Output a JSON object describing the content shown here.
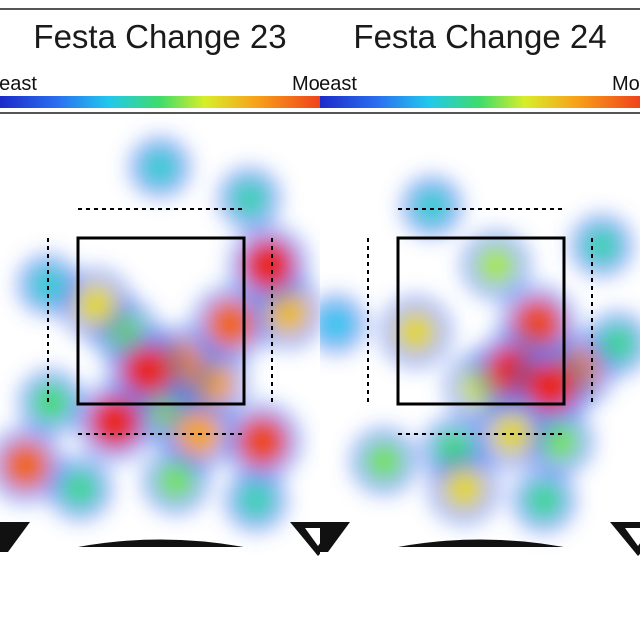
{
  "chart_data": [
    {
      "type": "heatmap",
      "title": "Festa Change 23",
      "legend": {
        "low_label": "Least",
        "high_label": "Most"
      },
      "grid": false,
      "strike_zone": true,
      "hotspots": [
        {
          "x": 0.08,
          "y": 0.86,
          "intensity": 0.9
        },
        {
          "x": 0.16,
          "y": 0.7,
          "intensity": 0.5
        },
        {
          "x": 0.3,
          "y": 0.45,
          "intensity": 0.7
        },
        {
          "x": 0.39,
          "y": 0.52,
          "intensity": 0.55
        },
        {
          "x": 0.46,
          "y": 0.62,
          "intensity": 1.0
        },
        {
          "x": 0.56,
          "y": 0.6,
          "intensity": 0.85
        },
        {
          "x": 0.66,
          "y": 0.65,
          "intensity": 0.8
        },
        {
          "x": 0.72,
          "y": 0.5,
          "intensity": 0.9
        },
        {
          "x": 0.84,
          "y": 0.35,
          "intensity": 1.0
        },
        {
          "x": 0.9,
          "y": 0.47,
          "intensity": 0.75
        },
        {
          "x": 0.36,
          "y": 0.75,
          "intensity": 1.0
        },
        {
          "x": 0.52,
          "y": 0.72,
          "intensity": 0.6
        },
        {
          "x": 0.62,
          "y": 0.78,
          "intensity": 0.8
        },
        {
          "x": 0.82,
          "y": 0.8,
          "intensity": 0.95
        },
        {
          "x": 0.5,
          "y": 0.1,
          "intensity": 0.35
        },
        {
          "x": 0.78,
          "y": 0.18,
          "intensity": 0.4
        },
        {
          "x": 0.15,
          "y": 0.4,
          "intensity": 0.35
        },
        {
          "x": 0.25,
          "y": 0.92,
          "intensity": 0.45
        },
        {
          "x": 0.55,
          "y": 0.9,
          "intensity": 0.55
        },
        {
          "x": 0.8,
          "y": 0.95,
          "intensity": 0.4
        }
      ]
    },
    {
      "type": "heatmap",
      "title": "Festa Change 24",
      "legend": {
        "low_label": "Least",
        "high_label": "Most"
      },
      "grid": false,
      "strike_zone": true,
      "hotspots": [
        {
          "x": 0.3,
          "y": 0.52,
          "intensity": 0.7
        },
        {
          "x": 0.55,
          "y": 0.35,
          "intensity": 0.6
        },
        {
          "x": 0.68,
          "y": 0.5,
          "intensity": 0.95
        },
        {
          "x": 0.6,
          "y": 0.62,
          "intensity": 1.0
        },
        {
          "x": 0.72,
          "y": 0.66,
          "intensity": 1.0
        },
        {
          "x": 0.8,
          "y": 0.62,
          "intensity": 0.85
        },
        {
          "x": 0.5,
          "y": 0.66,
          "intensity": 0.65
        },
        {
          "x": 0.42,
          "y": 0.82,
          "intensity": 0.5
        },
        {
          "x": 0.6,
          "y": 0.78,
          "intensity": 0.7
        },
        {
          "x": 0.75,
          "y": 0.8,
          "intensity": 0.55
        },
        {
          "x": 0.2,
          "y": 0.85,
          "intensity": 0.55
        },
        {
          "x": 0.45,
          "y": 0.92,
          "intensity": 0.7
        },
        {
          "x": 0.88,
          "y": 0.3,
          "intensity": 0.4
        },
        {
          "x": 0.93,
          "y": 0.55,
          "intensity": 0.45
        },
        {
          "x": 0.35,
          "y": 0.2,
          "intensity": 0.35
        },
        {
          "x": 0.05,
          "y": 0.5,
          "intensity": 0.3
        },
        {
          "x": 0.7,
          "y": 0.95,
          "intensity": 0.45
        }
      ]
    }
  ]
}
